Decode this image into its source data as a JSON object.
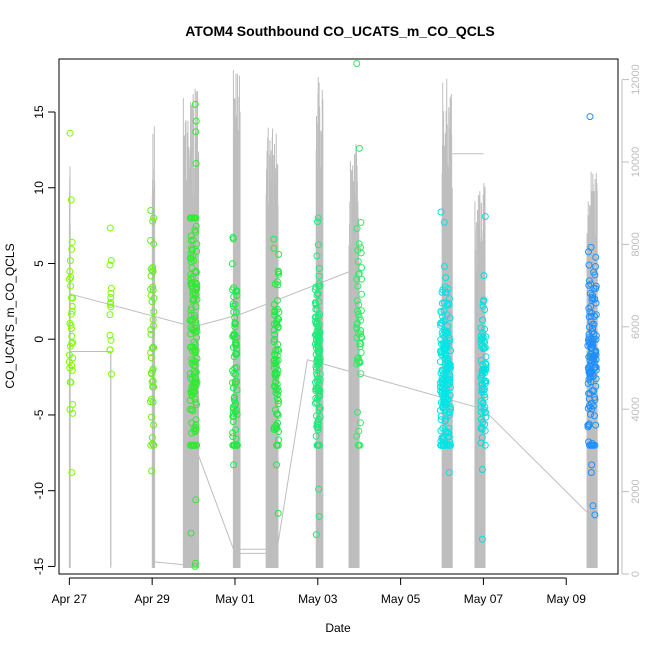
{
  "chart_data": {
    "type": "scatter",
    "title": "ATOM4 Southbound CO_UCATS_m_CO_QCLS",
    "xlabel": "Date",
    "ylabel": "CO_UCATS_m_CO_QCLS",
    "x_is_date": true,
    "xlim": [
      "2018-04-26 18:00",
      "2018-05-10 06:00"
    ],
    "ylim": [
      -15.5,
      18.5
    ],
    "y2lim": [
      0,
      12500
    ],
    "x_ticks": [
      {
        "value": "2018-04-27",
        "label": "Apr 27"
      },
      {
        "value": "2018-04-29",
        "label": "Apr 29"
      },
      {
        "value": "2018-05-01",
        "label": "May 01"
      },
      {
        "value": "2018-05-03",
        "label": "May 03"
      },
      {
        "value": "2018-05-05",
        "label": "May 05"
      },
      {
        "value": "2018-05-07",
        "label": "May 07"
      },
      {
        "value": "2018-05-09",
        "label": "May 09"
      }
    ],
    "y_ticks": [
      -15,
      -10,
      -5,
      0,
      5,
      10,
      15
    ],
    "y2_ticks": [
      0,
      2000,
      4000,
      6000,
      8000,
      10000,
      12000
    ],
    "grid": false,
    "altitude_trace": {
      "color": "#bebebe",
      "axis": "right",
      "flights": [
        {
          "start": "2018-04-27 00:00",
          "end": "2018-04-27 00:30",
          "amplitude": 10000
        },
        {
          "start": "2018-04-28 00:00",
          "end": "2018-04-28 00:30",
          "amplitude": 0
        },
        {
          "start": "2018-04-29 00:00",
          "end": "2018-04-29 01:30",
          "amplitude": 11500
        },
        {
          "start": "2018-04-29 18:00",
          "end": "2018-04-30 03:00",
          "amplitude": 11800
        },
        {
          "start": "2018-04-30 23:00",
          "end": "2018-05-01 03:00",
          "amplitude": 12300
        },
        {
          "start": "2018-05-01 18:00",
          "end": "2018-05-02 01:00",
          "amplitude": 10900
        },
        {
          "start": "2018-05-02 23:00",
          "end": "2018-05-03 03:00",
          "amplitude": 12200
        },
        {
          "start": "2018-05-03 18:00",
          "end": "2018-05-04 00:00",
          "amplitude": 10500
        },
        {
          "start": "2018-05-06 00:00",
          "end": "2018-05-06 06:00",
          "amplitude": 12100
        },
        {
          "start": "2018-05-06 19:00",
          "end": "2018-05-07 01:00",
          "amplitude": 9500
        },
        {
          "start": "2018-05-09 12:00",
          "end": "2018-05-09 18:00",
          "amplitude": 9800
        }
      ],
      "connectors": [
        {
          "x": [
            "2018-04-27 00:00",
            "2018-04-30 00:00",
            "2018-05-01 03:00",
            "2018-05-03 22:00"
          ],
          "y": [
            6800,
            6000,
            6300,
            7400
          ]
        },
        {
          "x": [
            "2018-05-02 00:00",
            "2018-05-02 18:00",
            "2018-05-03 03:00",
            "2018-05-07 00:00",
            "2018-05-09 12:00"
          ],
          "y": [
            500,
            5200,
            5100,
            4000,
            1500
          ]
        },
        {
          "x": [
            "2018-04-30 00:00",
            "2018-05-01 00:00",
            "2018-05-02 00:00"
          ],
          "y": [
            3200,
            500,
            500
          ]
        },
        {
          "x": [
            "2018-04-29 00:00",
            "2018-04-30 00:00"
          ],
          "y": [
            300,
            200
          ]
        },
        {
          "x": [
            "2018-04-27 00:00",
            "2018-04-28 00:00",
            "2018-04-28 00:00"
          ],
          "y": [
            5400,
            5400,
            200
          ]
        },
        {
          "x": [
            "2018-05-01 00:00",
            "2018-05-02 00:00"
          ],
          "y": [
            600,
            600
          ]
        },
        {
          "x": [
            "2018-05-06 06:00",
            "2018-05-07 00:00"
          ],
          "y": [
            10200,
            10200
          ]
        }
      ]
    },
    "groups": [
      {
        "center": "2018-04-27 01:00",
        "spread_hours": 2,
        "color": "#7cfc00",
        "n": 26,
        "y_mean": 1.5,
        "y_sd": 3.0,
        "extra_y": [
          13.6,
          9.2,
          6.4,
          -8.8,
          -4.3,
          -4.9,
          -1.9
        ]
      },
      {
        "center": "2018-04-28 00:00",
        "spread_hours": 1,
        "color": "#7cfc00",
        "n": 10,
        "y_mean": 1.5,
        "y_sd": 2.4,
        "extra_y": [
          5.2,
          4.9,
          2.3,
          -0.7,
          -2.3
        ]
      },
      {
        "center": "2018-04-29 00:00",
        "spread_hours": 2,
        "color": "#66ee22",
        "n": 40,
        "y_mean": 0.0,
        "y_sd": 4.0,
        "extra_y": [
          8.5,
          7.8,
          6.3,
          -8.7,
          -6.9
        ]
      },
      {
        "center": "2018-04-30 00:00",
        "spread_hours": 4,
        "color": "#33e833",
        "n": 150,
        "y_mean": 0.0,
        "y_sd": 5.0,
        "extra_y": [
          15.5,
          14.4,
          13.7,
          11.6,
          -15.0,
          -14.8,
          -12.8,
          -10.6
        ]
      },
      {
        "center": "2018-05-01 00:00",
        "spread_hours": 3,
        "color": "#22e844",
        "n": 70,
        "y_mean": -2.0,
        "y_sd": 3.5,
        "extra_y": [
          2.8,
          2.3,
          -7.0,
          -8.3
        ]
      },
      {
        "center": "2018-05-02 00:00",
        "spread_hours": 3,
        "color": "#22e844",
        "n": 80,
        "y_mean": -1.5,
        "y_sd": 3.5,
        "extra_y": [
          6.0,
          5.6,
          -8.3,
          -11.5
        ]
      },
      {
        "center": "2018-05-03 00:00",
        "spread_hours": 3,
        "color": "#22e87a",
        "n": 120,
        "y_mean": -1.0,
        "y_sd": 3.5,
        "extra_y": [
          5.5,
          -9.9,
          -11.7,
          -12.9
        ]
      },
      {
        "center": "2018-05-04 00:00",
        "spread_hours": 3,
        "color": "#33eb66",
        "n": 50,
        "y_mean": 0.5,
        "y_sd": 3.5,
        "extra_y": [
          18.2,
          12.6,
          5.7,
          -6.4
        ]
      },
      {
        "center": "2018-05-06 02:00",
        "spread_hours": 6,
        "color": "#00e5e5",
        "n": 180,
        "y_mean": -2.5,
        "y_sd": 3.0,
        "extra_y": [
          8.4,
          4.8,
          -6.5,
          -8.8
        ]
      },
      {
        "center": "2018-05-07 00:00",
        "spread_hours": 3,
        "color": "#00e0e0",
        "n": 70,
        "y_mean": -2.5,
        "y_sd": 3.0,
        "extra_y": [
          8.1,
          4.2,
          -8.6,
          -13.2
        ]
      },
      {
        "center": "2018-05-09 15:00",
        "spread_hours": 5,
        "color": "#1e90ff",
        "n": 130,
        "y_mean": -1.5,
        "y_sd": 3.0,
        "extra_y": [
          14.7,
          4.8,
          -8.3,
          -8.8,
          -11.0,
          -11.6
        ]
      }
    ]
  }
}
